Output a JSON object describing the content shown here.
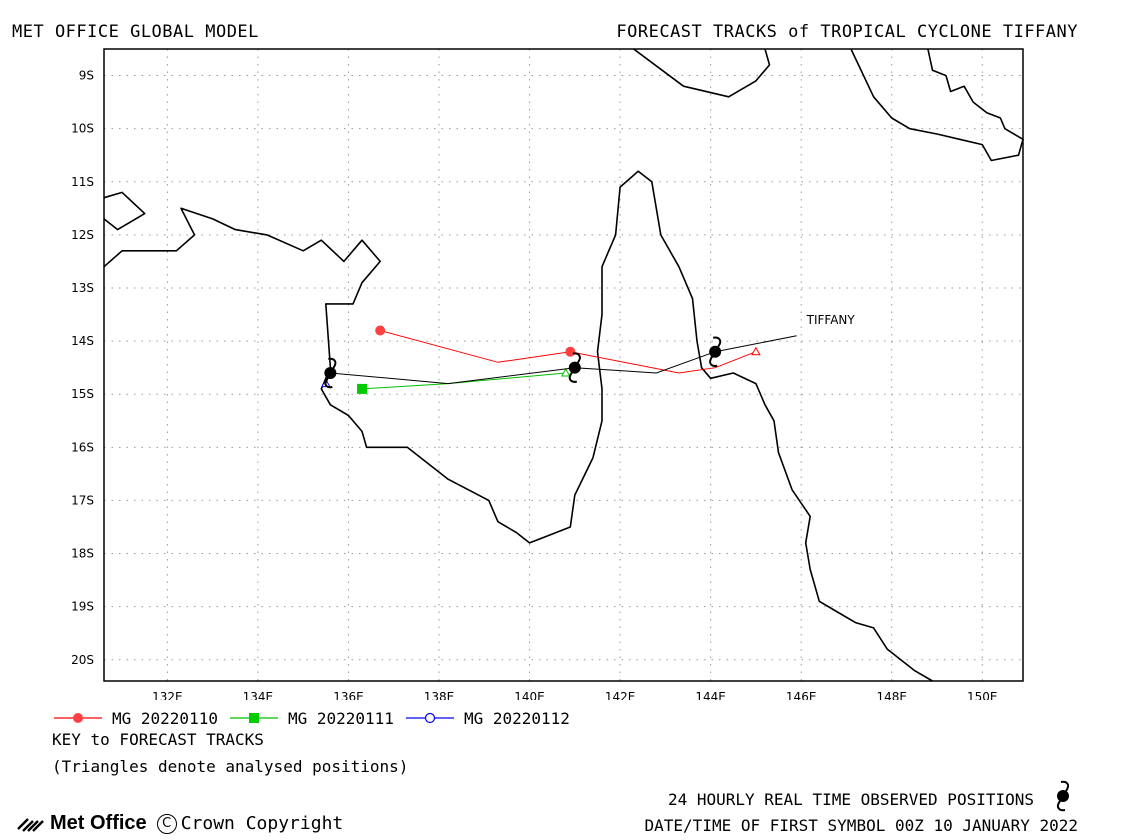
{
  "header": {
    "left": "MET OFFICE GLOBAL MODEL",
    "right": "FORECAST TRACKS of TROPICAL CYCLONE TIFFANY"
  },
  "map": {
    "lon_range": [
      130.6,
      150.9
    ],
    "lat_range": [
      -8.5,
      -20.4
    ],
    "lon_ticks": [
      "132E",
      "134E",
      "136E",
      "138E",
      "140E",
      "142E",
      "144E",
      "146E",
      "148E",
      "150E"
    ],
    "lat_ticks": [
      "9S",
      "10S",
      "11S",
      "12S",
      "13S",
      "14S",
      "15S",
      "16S",
      "17S",
      "18S",
      "19S",
      "20S"
    ],
    "grid": true,
    "storm_label": "TIFFANY",
    "coast_color": "#000000",
    "coastlines": [
      [
        [
          142.3,
          -8.5
        ],
        [
          143.4,
          -9.2
        ],
        [
          144.4,
          -9.4
        ],
        [
          145.0,
          -9.1
        ],
        [
          145.3,
          -8.8
        ],
        [
          145.2,
          -8.5
        ]
      ],
      [
        [
          147.1,
          -8.5
        ],
        [
          147.6,
          -9.4
        ],
        [
          148.0,
          -9.8
        ],
        [
          148.4,
          -10.0
        ],
        [
          149.0,
          -10.1
        ],
        [
          149.5,
          -10.2
        ],
        [
          150.0,
          -10.3
        ],
        [
          150.2,
          -10.6
        ],
        [
          150.8,
          -10.5
        ],
        [
          150.9,
          -10.2
        ],
        [
          150.5,
          -10.0
        ],
        [
          150.4,
          -9.8
        ],
        [
          150.1,
          -9.7
        ],
        [
          149.8,
          -9.5
        ],
        [
          149.6,
          -9.2
        ],
        [
          149.3,
          -9.3
        ],
        [
          149.2,
          -9.0
        ],
        [
          148.9,
          -8.9
        ],
        [
          148.8,
          -8.5
        ]
      ],
      [
        [
          130.6,
          -11.3
        ],
        [
          131.0,
          -11.2
        ],
        [
          131.5,
          -11.6
        ],
        [
          130.9,
          -11.9
        ],
        [
          130.6,
          -11.7
        ]
      ],
      [
        [
          130.6,
          -12.6
        ],
        [
          131.0,
          -12.3
        ],
        [
          132.2,
          -12.3
        ],
        [
          132.6,
          -12.0
        ],
        [
          132.3,
          -11.5
        ],
        [
          133.0,
          -11.7
        ],
        [
          133.5,
          -11.9
        ],
        [
          134.2,
          -12.0
        ],
        [
          135.0,
          -12.3
        ],
        [
          135.4,
          -12.1
        ],
        [
          135.9,
          -12.5
        ],
        [
          136.3,
          -12.1
        ],
        [
          136.7,
          -12.5
        ],
        [
          136.3,
          -12.9
        ],
        [
          136.1,
          -13.3
        ],
        [
          135.5,
          -13.3
        ],
        [
          135.6,
          -14.5
        ],
        [
          135.4,
          -14.9
        ],
        [
          135.6,
          -15.2
        ],
        [
          136.0,
          -15.4
        ],
        [
          136.3,
          -15.7
        ],
        [
          136.4,
          -16.0
        ],
        [
          137.3,
          -16.0
        ],
        [
          138.2,
          -16.6
        ],
        [
          139.1,
          -17.0
        ],
        [
          139.3,
          -17.4
        ],
        [
          139.7,
          -17.6
        ],
        [
          140.0,
          -17.8
        ],
        [
          140.3,
          -17.7
        ],
        [
          140.9,
          -17.5
        ],
        [
          141.0,
          -16.9
        ],
        [
          141.4,
          -16.2
        ],
        [
          141.6,
          -15.5
        ],
        [
          141.6,
          -14.9
        ],
        [
          141.5,
          -14.2
        ],
        [
          141.6,
          -13.5
        ],
        [
          141.6,
          -12.6
        ],
        [
          141.9,
          -12.0
        ],
        [
          142.0,
          -11.1
        ],
        [
          142.4,
          -10.8
        ],
        [
          142.7,
          -11.0
        ],
        [
          142.9,
          -12.0
        ],
        [
          143.3,
          -12.6
        ],
        [
          143.6,
          -13.2
        ],
        [
          143.7,
          -14.0
        ],
        [
          143.8,
          -14.5
        ],
        [
          144.0,
          -14.7
        ],
        [
          144.5,
          -14.6
        ],
        [
          145.0,
          -14.8
        ],
        [
          145.2,
          -15.2
        ],
        [
          145.4,
          -15.5
        ],
        [
          145.5,
          -16.1
        ],
        [
          145.8,
          -16.8
        ],
        [
          146.2,
          -17.3
        ],
        [
          146.1,
          -17.8
        ],
        [
          146.2,
          -18.3
        ],
        [
          146.4,
          -18.9
        ],
        [
          146.8,
          -19.1
        ],
        [
          147.2,
          -19.3
        ],
        [
          147.6,
          -19.4
        ],
        [
          147.9,
          -19.8
        ],
        [
          148.5,
          -20.2
        ],
        [
          148.9,
          -20.4
        ]
      ]
    ]
  },
  "tracks": [
    {
      "name": "MG 20220110",
      "color": "#ff0000",
      "marker": "circle-filled",
      "analysed": [
        [
          145.0,
          -14.2
        ]
      ],
      "forecast": [
        [
          144.1,
          -14.5
        ],
        [
          143.3,
          -14.6
        ],
        [
          140.9,
          -14.2
        ],
        [
          139.3,
          -14.4
        ],
        [
          136.7,
          -13.8
        ]
      ]
    },
    {
      "name": "MG 20220111",
      "color": "#00c000",
      "marker": "square-filled",
      "analysed": [
        [
          140.8,
          -14.6
        ]
      ],
      "forecast": [
        [
          138.2,
          -14.8
        ],
        [
          136.3,
          -14.9
        ]
      ]
    },
    {
      "name": "MG 20220112",
      "color": "#0000ff",
      "marker": "circle-open",
      "analysed": [
        [
          135.5,
          -14.8
        ]
      ],
      "forecast": []
    }
  ],
  "observed": {
    "color": "#000000",
    "track": [
      [
        145.9,
        -13.9
      ],
      [
        144.1,
        -14.2
      ],
      [
        142.8,
        -14.6
      ],
      [
        141.0,
        -14.5
      ],
      [
        138.2,
        -14.8
      ],
      [
        135.6,
        -14.6
      ],
      [
        135.5,
        -14.8
      ]
    ],
    "symbols": [
      [
        144.1,
        -14.2
      ],
      [
        141.0,
        -14.5
      ],
      [
        135.6,
        -14.6
      ]
    ]
  },
  "key": {
    "title": "KEY to FORECAST TRACKS",
    "subtitle": "(Triangles denote analysed positions)"
  },
  "footer": {
    "observed_line": "24 HOURLY REAL TIME OBSERVED POSITIONS",
    "datetime_line": "DATE/TIME OF FIRST SYMBOL 00Z 10 JANUARY 2022",
    "brand": "Met Office",
    "copyright": "Crown Copyright",
    "copyright_symbol": "C"
  }
}
